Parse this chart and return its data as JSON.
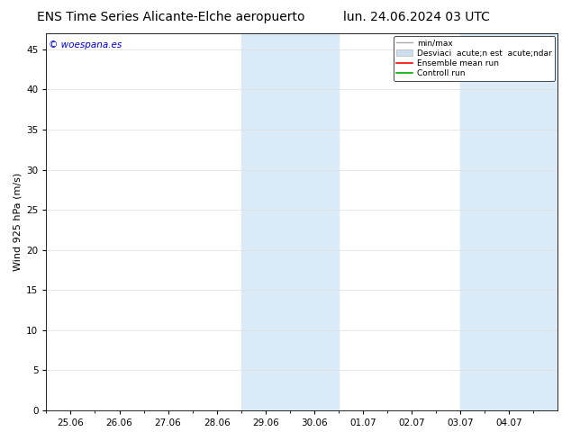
{
  "title_left": "ENS Time Series Alicante-Elche aeropuerto",
  "title_right": "lun. 24.06.2024 03 UTC",
  "ylabel": "Wind 925 hPa (m/s)",
  "watermark": "© woespana.es",
  "bg_color": "#ffffff",
  "plot_bg_color": "#ffffff",
  "shade_color": "#daeaf7",
  "ylim": [
    0,
    47
  ],
  "yticks": [
    0,
    5,
    10,
    15,
    20,
    25,
    30,
    35,
    40,
    45
  ],
  "xlim": [
    0.0,
    10.5
  ],
  "xtick_labels": [
    "25.06",
    "26.06",
    "27.06",
    "28.06",
    "29.06",
    "30.06",
    "01.07",
    "02.07",
    "03.07",
    "04.07"
  ],
  "xtick_positions": [
    0.5,
    1.5,
    2.5,
    3.5,
    4.5,
    5.5,
    6.5,
    7.5,
    8.5,
    9.5
  ],
  "shade_regions": [
    {
      "x_start": 4.0,
      "x_end": 6.0
    },
    {
      "x_start": 8.5,
      "x_end": 10.5
    }
  ],
  "legend_entries": [
    {
      "label": "min/max",
      "color": "#aaaaaa",
      "lw": 1.0,
      "style": "minmax"
    },
    {
      "label": "Desviaci  acute;n est  acute;ndar",
      "color": "#ccdded",
      "lw": 5,
      "style": "band"
    },
    {
      "label": "Ensemble mean run",
      "color": "#ff0000",
      "lw": 1.2,
      "style": "line"
    },
    {
      "label": "Controll run",
      "color": "#00aa00",
      "lw": 1.2,
      "style": "line"
    }
  ],
  "title_fontsize": 10,
  "axis_fontsize": 8,
  "tick_fontsize": 7.5,
  "watermark_color": "#0000cc",
  "grid_color": "#dddddd",
  "tick_color": "#000000",
  "spine_color": "#000000"
}
